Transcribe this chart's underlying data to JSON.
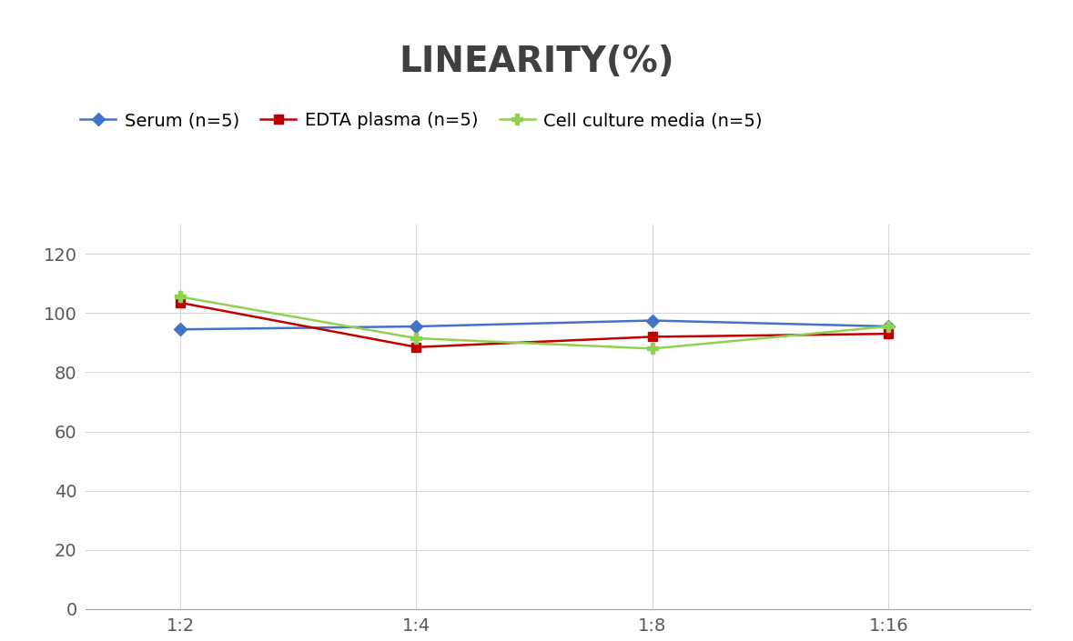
{
  "title": "LINEARITY(%)",
  "title_fontsize": 28,
  "title_fontweight": "bold",
  "title_color": "#404040",
  "x_labels": [
    "1:2",
    "1:4",
    "1:8",
    "1:16"
  ],
  "x_positions": [
    0,
    1,
    2,
    3
  ],
  "series": [
    {
      "label": "Serum (n=5)",
      "values": [
        94.5,
        95.5,
        97.5,
        95.5
      ],
      "color": "#4472C4",
      "marker": "D",
      "marker_size": 7,
      "linewidth": 1.8
    },
    {
      "label": "EDTA plasma (n=5)",
      "values": [
        103.5,
        88.5,
        92.0,
        93.0
      ],
      "color": "#C00000",
      "marker": "s",
      "marker_size": 7,
      "linewidth": 1.8
    },
    {
      "label": "Cell culture media (n=5)",
      "values": [
        105.5,
        91.5,
        88.0,
        95.5
      ],
      "color": "#92D050",
      "marker": "P",
      "marker_size": 8,
      "linewidth": 1.8
    }
  ],
  "ylim": [
    0,
    130
  ],
  "yticks": [
    0,
    20,
    40,
    60,
    80,
    100,
    120
  ],
  "grid_color": "#D3D3D3",
  "grid_linewidth": 0.7,
  "background_color": "#FFFFFF",
  "legend_fontsize": 14,
  "tick_fontsize": 14,
  "tick_color": "#595959"
}
